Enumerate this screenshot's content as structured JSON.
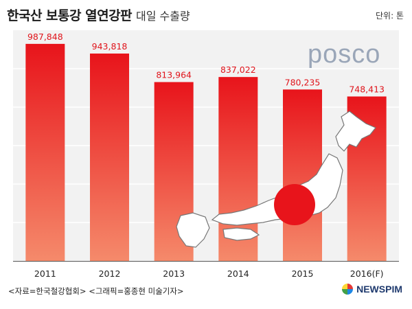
{
  "header": {
    "title": "한국산 보통강 열연강판",
    "subtitle": "대일 수출량",
    "unit": "단위: 톤"
  },
  "logo_text": "posco",
  "footer": {
    "source": "<자료=한국철강협회> <그래픽=홍종현 미술기자>",
    "brand": "NEWSPIM"
  },
  "colors": {
    "bar_top": "#e8141b",
    "bar_bottom": "#f58a6b",
    "label": "#e0141b",
    "background": "#f2f2f2"
  },
  "chart_data": {
    "type": "bar",
    "categories": [
      "2011",
      "2012",
      "2013",
      "2014",
      "2015",
      "2016(F)"
    ],
    "values": [
      987848,
      943818,
      813964,
      837022,
      780235,
      748413
    ],
    "value_labels": [
      "987,848",
      "943,818",
      "813,964",
      "837,022",
      "780,235",
      "748,413"
    ],
    "title": "한국산 보통강 열연강판",
    "subtitle": "대일 수출량",
    "ylabel": "",
    "xlabel": "",
    "unit": "단위: 톤",
    "ylim": [
      0,
      1050000
    ],
    "grid": true
  }
}
